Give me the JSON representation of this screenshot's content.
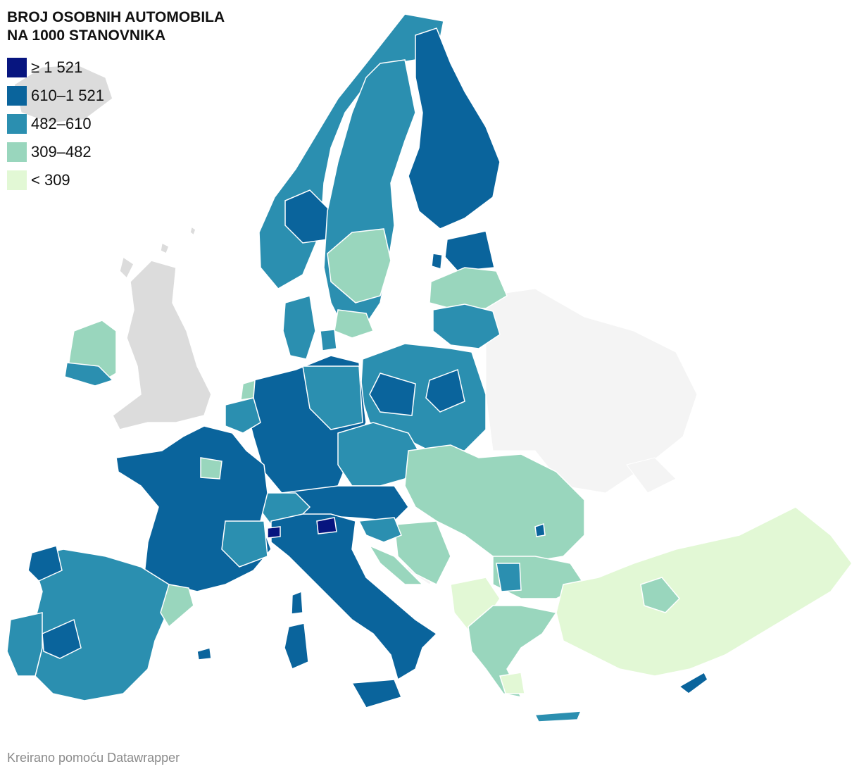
{
  "map": {
    "title_line1": "BROJ OSOBNIH AUTOMOBILA",
    "title_line2": "NA 1000 STANOVNIKA",
    "legend": [
      {
        "label": "≥ 1 521",
        "color": "#07157f"
      },
      {
        "label": "610–1 521",
        "color": "#0a649c"
      },
      {
        "label": "482–610",
        "color": "#2b8fb0"
      },
      {
        "label": "309–482",
        "color": "#99d6bd"
      },
      {
        "label": "< 309",
        "color": "#e2f8d5"
      }
    ],
    "no_data_color": "#dcdcdc",
    "outside_color": "#f4f4f4"
  },
  "footer": {
    "credit": "Kreirano pomoću Datawrapper"
  }
}
